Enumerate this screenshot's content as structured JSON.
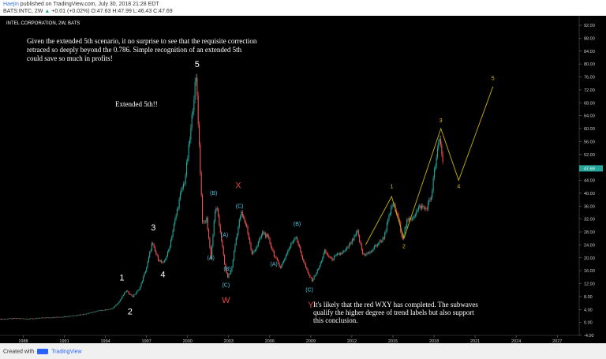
{
  "header": {
    "username": "Haejin",
    "published_text": " published on TradingView.com, July 30, 2018 21:28 EDT",
    "symbol": "BATS:INTC, 2W",
    "arrow": "▲",
    "change": "+0.01 (+0.02%)",
    "open": "O:47.63",
    "high": "H:47.99",
    "low": "L:46.43",
    "close": "C:47.69"
  },
  "footer": {
    "created_with": "Created with",
    "brand": "TradingView"
  },
  "chart_data": {
    "type": "line",
    "title": "INTEL CORPORATION, 2W, BATS",
    "colors": {
      "background": "#000000",
      "candles": "#26a69a",
      "candles_down": "#ef5350",
      "wave_lines": "#c8b400",
      "text": "#ffffff",
      "red_label": "#e0443e",
      "cyan_label": "#4fc3e0",
      "yellow_label": "#e6c200",
      "price_tag": "#26a69a"
    },
    "y_axis": {
      "ticks": [
        "92.00",
        "88.00",
        "84.00",
        "80.00",
        "76.00",
        "72.00",
        "68.00",
        "64.00",
        "60.00",
        "56.00",
        "52.00",
        "48.00",
        "44.00",
        "40.00",
        "36.00",
        "32.00",
        "28.00",
        "24.00",
        "20.00",
        "16.00",
        "12.00",
        "8.00",
        "4.00",
        "0.00",
        "-4.00"
      ],
      "range": [
        -4,
        92
      ]
    },
    "x_axis": {
      "ticks": [
        "1988",
        "1991",
        "1994",
        "1997",
        "2000",
        "2003",
        "2006",
        "2009",
        "2012",
        "2015",
        "2018",
        "2021",
        "2024",
        "2027"
      ],
      "range": [
        1986.3,
        2028.6
      ]
    },
    "last_price": "47.69",
    "price_series": [
      [
        1986.3,
        1.0
      ],
      [
        1987.5,
        1.2
      ],
      [
        1988.5,
        1.1
      ],
      [
        1989.5,
        1.4
      ],
      [
        1990.5,
        1.6
      ],
      [
        1991.5,
        2.0
      ],
      [
        1992.5,
        2.6
      ],
      [
        1993.5,
        3.6
      ],
      [
        1994.5,
        4.2
      ],
      [
        1995.0,
        6.5
      ],
      [
        1995.5,
        9.8
      ],
      [
        1996.0,
        8.0
      ],
      [
        1996.5,
        10.5
      ],
      [
        1997.0,
        17.0
      ],
      [
        1997.4,
        24.5
      ],
      [
        1997.8,
        20.0
      ],
      [
        1998.2,
        18.0
      ],
      [
        1998.6,
        22.0
      ],
      [
        1999.0,
        30.0
      ],
      [
        1999.5,
        40.0
      ],
      [
        1999.8,
        44.0
      ],
      [
        2000.2,
        58.0
      ],
      [
        2000.5,
        72.0
      ],
      [
        2000.65,
        75.5
      ],
      [
        2000.8,
        60.0
      ],
      [
        2001.1,
        30.0
      ],
      [
        2001.4,
        32.0
      ],
      [
        2001.7,
        20.0
      ],
      [
        2002.0,
        34.0
      ],
      [
        2002.1,
        36.0
      ],
      [
        2002.4,
        28.0
      ],
      [
        2002.7,
        18.0
      ],
      [
        2002.9,
        14.0
      ],
      [
        2003.2,
        16.0
      ],
      [
        2003.5,
        25.0
      ],
      [
        2003.9,
        34.0
      ],
      [
        2004.3,
        30.0
      ],
      [
        2004.7,
        21.0
      ],
      [
        2005.1,
        24.0
      ],
      [
        2005.5,
        28.0
      ],
      [
        2005.9,
        26.0
      ],
      [
        2006.4,
        20.0
      ],
      [
        2006.8,
        17.0
      ],
      [
        2007.3,
        22.0
      ],
      [
        2007.9,
        27.0
      ],
      [
        2008.3,
        21.0
      ],
      [
        2008.8,
        15.0
      ],
      [
        2009.1,
        13.0
      ],
      [
        2009.6,
        17.0
      ],
      [
        2010.0,
        22.0
      ],
      [
        2010.5,
        19.5
      ],
      [
        2011.0,
        21.0
      ],
      [
        2011.5,
        22.0
      ],
      [
        2012.0,
        25.0
      ],
      [
        2012.4,
        28.0
      ],
      [
        2012.8,
        21.0
      ],
      [
        2013.3,
        21.5
      ],
      [
        2013.8,
        24.0
      ],
      [
        2014.3,
        26.0
      ],
      [
        2014.8,
        34.0
      ],
      [
        2015.0,
        37.0
      ],
      [
        2015.4,
        32.0
      ],
      [
        2015.7,
        26.0
      ],
      [
        2016.0,
        31.0
      ],
      [
        2016.5,
        33.0
      ],
      [
        2017.0,
        36.0
      ],
      [
        2017.4,
        35.0
      ],
      [
        2017.8,
        39.0
      ],
      [
        2018.0,
        46.0
      ],
      [
        2018.4,
        57.0
      ],
      [
        2018.55,
        53.0
      ],
      [
        2018.7,
        48.0
      ]
    ],
    "wave_lines": [
      {
        "name": "primary",
        "points": [
          [
            2013.0,
            24.0
          ],
          [
            2014.9,
            39.0
          ],
          [
            2015.8,
            26.0
          ],
          [
            2018.5,
            60.0
          ],
          [
            2019.8,
            44.0
          ],
          [
            2022.3,
            73.0
          ]
        ]
      }
    ],
    "labels": [
      {
        "text": "1",
        "x": 1995.2,
        "y": 13.0,
        "color": "white",
        "size": 11
      },
      {
        "text": "2",
        "x": 1995.8,
        "y": 2.5,
        "color": "white",
        "size": 11
      },
      {
        "text": "3",
        "x": 1997.5,
        "y": 28.5,
        "color": "white",
        "size": 11
      },
      {
        "text": "4",
        "x": 1998.2,
        "y": 14.0,
        "color": "white",
        "size": 11
      },
      {
        "text": "5",
        "x": 2000.7,
        "y": 79.0,
        "color": "white",
        "size": 11
      },
      {
        "text": "(B)",
        "x": 2001.9,
        "y": 39.5,
        "color": "cyan",
        "size": 7
      },
      {
        "text": "(A)",
        "x": 2001.7,
        "y": 19.5,
        "color": "cyan",
        "size": 7
      },
      {
        "text": "(A)",
        "x": 2002.7,
        "y": 26.5,
        "color": "cyan",
        "size": 7
      },
      {
        "text": "(B)",
        "x": 2002.9,
        "y": 16.0,
        "color": "cyan",
        "size": 7
      },
      {
        "text": "(C)",
        "x": 2002.8,
        "y": 11.0,
        "color": "cyan",
        "size": 7
      },
      {
        "text": "W",
        "x": 2002.8,
        "y": 6.0,
        "color": "red",
        "size": 11
      },
      {
        "text": "X",
        "x": 2003.7,
        "y": 41.5,
        "color": "red",
        "size": 11
      },
      {
        "text": "(C)",
        "x": 2003.8,
        "y": 35.5,
        "color": "cyan",
        "size": 7
      },
      {
        "text": "(A)",
        "x": 2006.3,
        "y": 17.5,
        "color": "cyan",
        "size": 7
      },
      {
        "text": "(B)",
        "x": 2008.0,
        "y": 30.0,
        "color": "cyan",
        "size": 7
      },
      {
        "text": "(C)",
        "x": 2008.9,
        "y": 9.5,
        "color": "cyan",
        "size": 7
      },
      {
        "text": "Y",
        "x": 2009.0,
        "y": 4.5,
        "color": "red",
        "size": 11
      },
      {
        "text": "1",
        "x": 2014.9,
        "y": 41.5,
        "color": "yellow",
        "size": 7
      },
      {
        "text": "2",
        "x": 2015.8,
        "y": 23.0,
        "color": "yellow",
        "size": 7
      },
      {
        "text": "3",
        "x": 2018.5,
        "y": 62.0,
        "color": "yellow",
        "size": 7
      },
      {
        "text": "4",
        "x": 2019.8,
        "y": 41.5,
        "color": "yellow",
        "size": 7
      },
      {
        "text": "5",
        "x": 2022.3,
        "y": 75.0,
        "color": "yellow",
        "size": 7
      }
    ],
    "annotations": {
      "note1_line1": "Given the extended 5th scenario, it no surprise to see that the requisite correction",
      "note1_line2": "retraced so deeply beyond the 0.786. Simple recognition of an extended 5th",
      "note1_line3": "could save so much in profits!",
      "note2": "Extended 5th!!",
      "note3_line1": "It's likely that the red WXY has completed. The subwaves",
      "note3_line2": "qualify the higher degree of trend labels but also support",
      "note3_line3": "this conclusion."
    }
  }
}
